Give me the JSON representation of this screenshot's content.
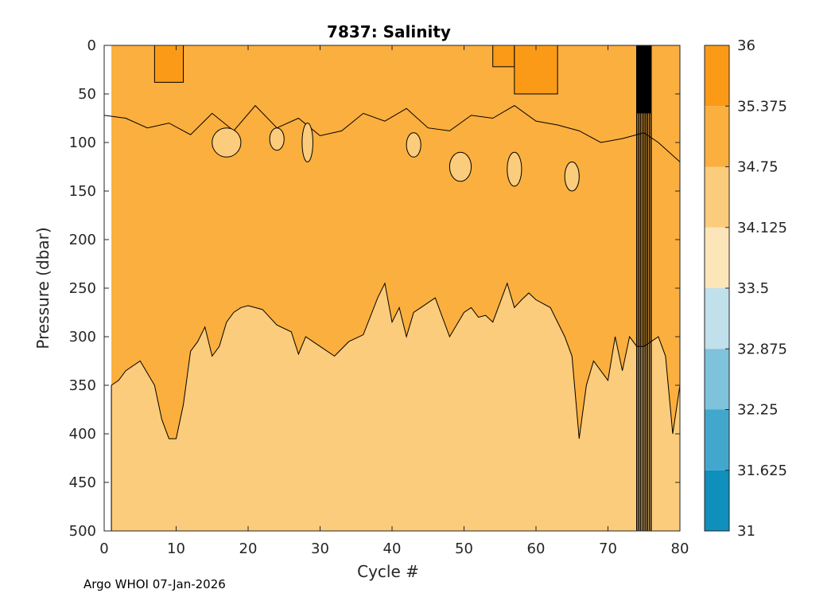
{
  "chart_data": {
    "type": "heatmap",
    "subtype": "filled-contour",
    "title": "7837:  Salinity",
    "xlabel": "Cycle #",
    "ylabel": "Pressure (dbar)",
    "xlim": [
      0,
      80
    ],
    "ylim": [
      0,
      500
    ],
    "y_reversed": true,
    "xticks": [
      0,
      10,
      20,
      30,
      40,
      50,
      60,
      70,
      80
    ],
    "yticks": [
      0,
      50,
      100,
      150,
      200,
      250,
      300,
      350,
      400,
      450,
      500
    ],
    "colorbar": {
      "levels": [
        "31",
        "31.625",
        "32.25",
        "32.875",
        "33.5",
        "34.125",
        "34.75",
        "35.375",
        "36"
      ],
      "colors": [
        "#0e8fbc",
        "#42a7cc",
        "#7fc2dc",
        "#c0e0ec",
        "#fde5ba",
        "#fbcc7b",
        "#fbaf3e",
        "#fa9a16"
      ]
    },
    "data_start_cycle": 1,
    "halocline_boundary": {
      "cycle": [
        1,
        2,
        3,
        5,
        7,
        8,
        9,
        10,
        11,
        12,
        13,
        14,
        15,
        16,
        17,
        18,
        19,
        20,
        22,
        24,
        26,
        27,
        28,
        29,
        30,
        32,
        34,
        36,
        38,
        39,
        40,
        41,
        42,
        43,
        44,
        46,
        48,
        50,
        51,
        52,
        53,
        54,
        55,
        56,
        57,
        58,
        59,
        60,
        62,
        64,
        65,
        66,
        67,
        68,
        69,
        70,
        71,
        72,
        73,
        74,
        75,
        76,
        77,
        78,
        79,
        80
      ],
      "pressure": [
        350,
        345,
        335,
        325,
        350,
        385,
        405,
        405,
        370,
        315,
        305,
        290,
        320,
        310,
        285,
        275,
        270,
        268,
        272,
        288,
        295,
        318,
        300,
        305,
        310,
        320,
        305,
        298,
        260,
        245,
        285,
        270,
        300,
        275,
        270,
        260,
        300,
        275,
        270,
        280,
        278,
        285,
        265,
        245,
        270,
        262,
        255,
        262,
        270,
        300,
        320,
        405,
        350,
        325,
        335,
        345,
        300,
        335,
        300,
        310,
        310,
        305,
        300,
        320,
        400,
        350
      ]
    },
    "upper_contour": {
      "cycle": [
        0,
        3,
        6,
        9,
        12,
        15,
        18,
        21,
        24,
        27,
        30,
        33,
        36,
        39,
        42,
        45,
        48,
        51,
        54,
        57,
        60,
        63,
        66,
        69,
        72,
        74,
        75,
        77,
        80
      ],
      "pressure": [
        72,
        75,
        85,
        80,
        92,
        70,
        88,
        62,
        85,
        75,
        93,
        88,
        70,
        78,
        65,
        85,
        88,
        72,
        75,
        62,
        78,
        82,
        88,
        100,
        96,
        92,
        90,
        100,
        120
      ]
    },
    "high_salinity_patches": [
      {
        "cycle": [
          7,
          11
        ],
        "pressure": [
          0,
          38
        ]
      },
      {
        "cycle": [
          54,
          57
        ],
        "pressure": [
          0,
          22
        ]
      },
      {
        "cycle": [
          57,
          63
        ],
        "pressure": [
          0,
          50
        ]
      }
    ],
    "low_salinity_patches": [
      {
        "cycle": [
          15,
          19
        ],
        "pressure": [
          85,
          115
        ]
      },
      {
        "cycle": [
          23,
          25
        ],
        "pressure": [
          85,
          108
        ]
      },
      {
        "cycle": [
          27.5,
          29
        ],
        "pressure": [
          80,
          120
        ]
      },
      {
        "cycle": [
          42,
          44
        ],
        "pressure": [
          90,
          115
        ]
      },
      {
        "cycle": [
          48,
          51
        ],
        "pressure": [
          110,
          140
        ]
      },
      {
        "cycle": [
          56,
          58
        ],
        "pressure": [
          110,
          145
        ]
      },
      {
        "cycle": [
          64,
          66
        ],
        "pressure": [
          120,
          150
        ]
      }
    ],
    "dense_contour_band": {
      "cycle": [
        74,
        76
      ],
      "pressure": [
        0,
        500
      ]
    },
    "dense_contour_cap": {
      "cycle": [
        74,
        76
      ],
      "pressure": [
        0,
        70
      ]
    }
  },
  "footer": "Argo WHOI 07-Jan-2026"
}
